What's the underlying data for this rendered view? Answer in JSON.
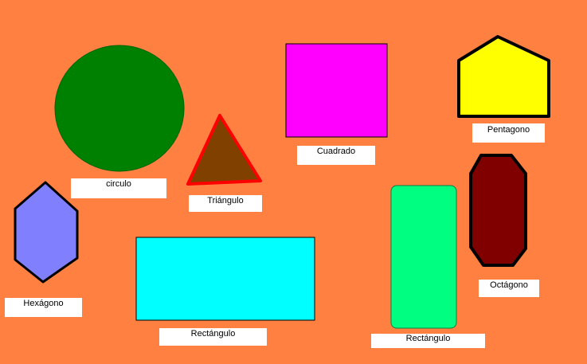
{
  "background_color": "#FF8040",
  "shapes": {
    "circle": {
      "label": "circulo",
      "fill": "#008000",
      "stroke": "#006400"
    },
    "triangle": {
      "label": "Triángulo",
      "fill": "#804000",
      "stroke": "#FF0000"
    },
    "square": {
      "label": "Cuadrado",
      "fill": "#FF00FF",
      "stroke": "#000000"
    },
    "pentagon": {
      "label": "Pentagono",
      "fill": "#FFFF00",
      "stroke": "#000000"
    },
    "hexagon": {
      "label": "Hexágono",
      "fill": "#8080FF",
      "stroke": "#000000"
    },
    "rectangle_wide": {
      "label": "Rectángulo",
      "fill": "#00FFFF",
      "stroke": "#000000"
    },
    "rectangle_tall": {
      "label": "Rectángulo",
      "fill": "#00FF80",
      "stroke": "#008040"
    },
    "octagon": {
      "label": "Octágono",
      "fill": "#800000",
      "stroke": "#000000"
    }
  }
}
